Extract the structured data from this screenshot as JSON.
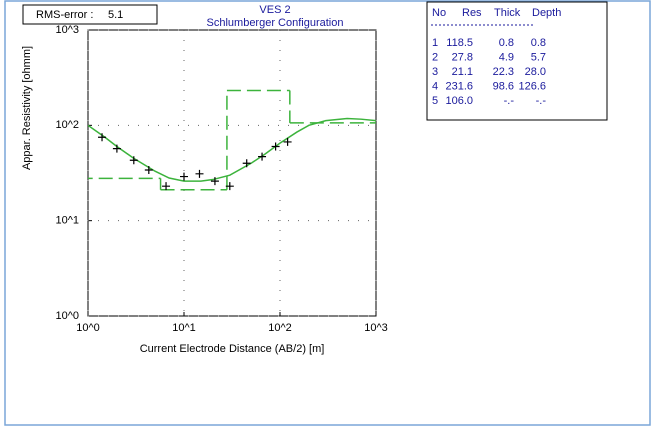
{
  "chart_data": {
    "type": "line",
    "title": "VES 2",
    "subtitle": "Schlumberger Configuration",
    "rms_label": "RMS-error :",
    "rms_value": "5.1",
    "x_label": "Current Electrode Distance (AB/2) [m]",
    "y_label": "Appar. Resistivity [ohmm]",
    "log_x": true,
    "log_y": true,
    "grid": true,
    "xlim": [
      1,
      1000
    ],
    "ylim": [
      1,
      1000
    ],
    "xticks": [
      {
        "value": 1,
        "label": "10^0"
      },
      {
        "value": 10,
        "label": "10^1"
      },
      {
        "value": 100,
        "label": "10^2"
      },
      {
        "value": 1000,
        "label": "10^3"
      }
    ],
    "yticks": [
      {
        "value": 1,
        "label": "10^0"
      },
      {
        "value": 10,
        "label": "10^1"
      },
      {
        "value": 100,
        "label": "10^2"
      },
      {
        "value": 1000,
        "label": "10^3"
      }
    ],
    "series": [
      {
        "color": "#3cb33c",
        "style": "solid",
        "x": [
          1,
          1.5,
          2,
          3,
          5,
          7,
          10,
          15,
          20,
          30,
          50,
          70,
          100,
          150,
          200,
          300,
          500,
          700,
          1000
        ],
        "values": [
          100,
          75,
          60,
          45,
          33,
          28,
          26,
          26,
          27,
          30,
          40,
          50,
          65,
          85,
          100,
          112,
          118,
          116,
          112
        ]
      },
      {
        "color": "#000000",
        "style": "cross",
        "x": [
          1.4,
          2,
          3,
          4.3,
          6.5,
          10,
          14.5,
          21,
          30,
          45,
          65,
          90,
          120
        ],
        "values": [
          75,
          57,
          43,
          34,
          23,
          29,
          31,
          26,
          23,
          40,
          47,
          60,
          67
        ]
      }
    ],
    "model_color": "#3cb33c",
    "table": {
      "header": [
        "No",
        "Res",
        "Thick",
        "Depth"
      ],
      "rows": [
        [
          "1",
          "118.5",
          "0.8",
          "0.8"
        ],
        [
          "2",
          "27.8",
          "4.9",
          "5.7"
        ],
        [
          "3",
          "21.1",
          "22.3",
          "28.0"
        ],
        [
          "4",
          "231.6",
          "98.6",
          "126.6"
        ],
        [
          "5",
          "106.0",
          "-.-",
          "-.-"
        ]
      ]
    }
  }
}
